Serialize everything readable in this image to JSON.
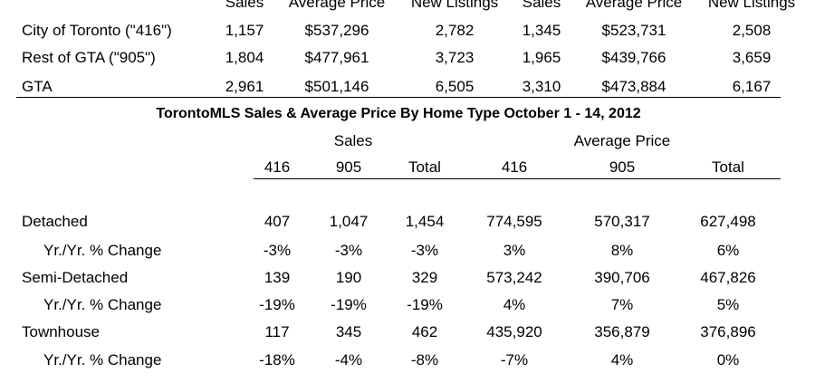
{
  "top_table": {
    "headers": [
      "Sales",
      "Average Price",
      "New Listings",
      "Sales",
      "Average Price",
      "New Listings"
    ],
    "rows": [
      {
        "label": "City of Toronto (\"416\")",
        "values": [
          "1,157",
          "$537,296",
          "2,782",
          "1,345",
          "$523,731",
          "2,508"
        ]
      },
      {
        "label": "Rest of GTA (\"905\")",
        "values": [
          "1,804",
          "$477,961",
          "3,723",
          "1,965",
          "$439,766",
          "3,659"
        ]
      },
      {
        "label": "GTA",
        "values": [
          "2,961",
          "$501,146",
          "6,505",
          "3,310",
          "$473,884",
          "6,167"
        ]
      }
    ]
  },
  "section_title": "TorontoMLS Sales & Average Price  By Home Type October 1 - 14, 2012",
  "bottom_table": {
    "group_headers": [
      "Sales",
      "Average Price"
    ],
    "column_headers": [
      "416",
      "905",
      "Total",
      "416",
      "905",
      "Total"
    ],
    "rows": [
      {
        "label": "Detached",
        "values": [
          "407",
          "1,047",
          "1,454",
          "774,595",
          "570,317",
          "627,498"
        ]
      },
      {
        "label": "Yr./Yr. % Change",
        "values": [
          "-3%",
          "-3%",
          "-3%",
          "3%",
          "8%",
          "6%"
        ]
      },
      {
        "label": "Semi-Detached",
        "values": [
          "139",
          "190",
          "329",
          "573,242",
          "390,706",
          "467,826"
        ]
      },
      {
        "label": "Yr./Yr. % Change",
        "values": [
          "-19%",
          "-19%",
          "-19%",
          "4%",
          "7%",
          "5%"
        ]
      },
      {
        "label": "Townhouse",
        "values": [
          "117",
          "345",
          "462",
          "435,920",
          "356,879",
          "376,896"
        ]
      },
      {
        "label": "Yr./Yr. % Change",
        "values": [
          "-18%",
          "-4%",
          "-8%",
          "-7%",
          "4%",
          "0%"
        ]
      }
    ]
  }
}
